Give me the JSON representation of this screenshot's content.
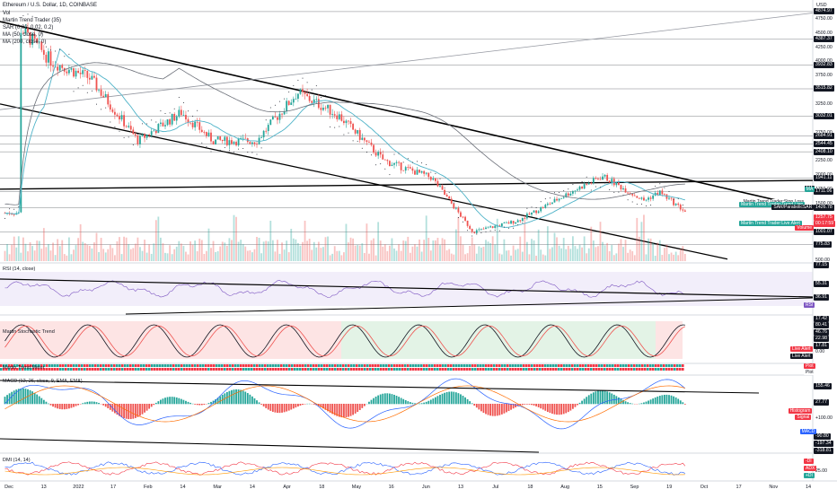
{
  "header": {
    "symbol_line": "Ethereum / U.S. Dollar, 1D, COINBASE",
    "indicators": [
      "Vol",
      "Martin Trend Trader (35)",
      "SAR (0.02, 0.02, 0.2)",
      "MA (50, close, 0)",
      "MA (200, close, 0)"
    ]
  },
  "axis": {
    "currency": "USD",
    "price_ticks": [
      "4750.00",
      "4500.00",
      "4250.00",
      "4000.00",
      "3750.00",
      "3500.00",
      "3250.00",
      "3000.00",
      "2750.00",
      "2500.00",
      "2250.00",
      "2000.00",
      "1750.00",
      "1500.00",
      "1250.00",
      "1000.00",
      "750.00",
      "500.00"
    ],
    "x_ticks": [
      "Dec",
      "13",
      "2022",
      "17",
      "Feb",
      "14",
      "Mar",
      "14",
      "Apr",
      "18",
      "May",
      "16",
      "Jun",
      "13",
      "Jul",
      "18",
      "Aug",
      "15",
      "Sep",
      "19",
      "Oct",
      "17",
      "Nov",
      "14"
    ]
  },
  "price_badges": [
    {
      "label": "4874.97",
      "color": "#131722"
    },
    {
      "label": "4387.37",
      "color": "#131722"
    },
    {
      "label": "3932.83",
      "color": "#131722"
    },
    {
      "label": "3515.82",
      "color": "#131722"
    },
    {
      "label": "3032.01",
      "color": "#131722"
    },
    {
      "label": "2684.91",
      "color": "#131722"
    },
    {
      "label": "2544.45",
      "color": "#131722"
    },
    {
      "label": "2408.10",
      "color": "#131722"
    },
    {
      "label": "1941.11",
      "color": "#131722"
    },
    {
      "label": "1711.06",
      "color": "#131722"
    },
    {
      "label": "1426.78",
      "color": "#131722"
    },
    {
      "label": "1257.75",
      "color": "#f23645"
    },
    {
      "label": "00:17:59",
      "color": "#f23645"
    },
    {
      "label": "1001.07",
      "color": "#131722"
    },
    {
      "label": "775.83",
      "color": "#131722"
    }
  ],
  "series_tags": [
    {
      "label": "MA",
      "color": "#131722"
    },
    {
      "label": "MA",
      "color": "#26a69a"
    },
    {
      "label": "Martin Trend Trader:Stop Loss",
      "color": "#ffffff",
      "text": "#131722"
    },
    {
      "label": "Martin Trend Trader:Trend Line",
      "color": "#26a69a"
    },
    {
      "label": "SAR/ParabolicSAR",
      "color": "#131722"
    },
    {
      "label": "Martin Trend Trader:Live Alert",
      "color": "#26a69a"
    },
    {
      "label": "Volume",
      "color": "#f23645"
    }
  ],
  "panes": {
    "rsi": {
      "name": "RSI (14, close)",
      "ticks": [
        "77.15",
        "55.31",
        "36.91"
      ],
      "tag": "RSI"
    },
    "stoch": {
      "name": "Martin Stochastic Trend",
      "ticks": [
        "17.42",
        "80.41",
        "46.76",
        "22.98",
        "17.81",
        "0.00"
      ],
      "tags": [
        "Live Alert",
        "Live Alert"
      ]
    },
    "trend": {
      "name": "Martin Trend Meter",
      "tags": [
        "Plot",
        "Plot"
      ]
    },
    "macd": {
      "name": "MACD (12, 26, close, 9, EMA, EMA)",
      "ticks": [
        "155.46",
        "27.77",
        "+100.00",
        "-90.80",
        "-197.34",
        "-318.81"
      ],
      "tags": [
        "Histogram",
        "Signal",
        "MACD"
      ]
    },
    "dmi": {
      "name": "DMI (14, 14)",
      "ticks": [
        "25.00"
      ],
      "tags": [
        "-DI",
        "ADX",
        "+DI"
      ]
    }
  },
  "chart_data": {
    "type": "candlestick",
    "title": "Ethereum / U.S. Dollar, 1D, COINBASE",
    "ylabel": "USD",
    "ylim": [
      500,
      5000
    ],
    "x_start": "2021-11-24",
    "x_end": "2022-09-20",
    "approx_closes_by_month": [
      {
        "date": "2021-12-01",
        "close": 4600
      },
      {
        "date": "2021-12-15",
        "close": 4000
      },
      {
        "date": "2022-01-01",
        "close": 3700
      },
      {
        "date": "2022-01-22",
        "close": 2600
      },
      {
        "date": "2022-02-10",
        "close": 3100
      },
      {
        "date": "2022-02-24",
        "close": 2600
      },
      {
        "date": "2022-03-15",
        "close": 2600
      },
      {
        "date": "2022-04-02",
        "close": 3450
      },
      {
        "date": "2022-04-20",
        "close": 3050
      },
      {
        "date": "2022-05-10",
        "close": 2250
      },
      {
        "date": "2022-05-31",
        "close": 1950
      },
      {
        "date": "2022-06-18",
        "close": 1000
      },
      {
        "date": "2022-07-08",
        "close": 1200
      },
      {
        "date": "2022-07-31",
        "close": 1700
      },
      {
        "date": "2022-08-14",
        "close": 1980
      },
      {
        "date": "2022-09-01",
        "close": 1550
      },
      {
        "date": "2022-09-08",
        "close": 1700
      },
      {
        "date": "2022-09-20",
        "close": 1330
      }
    ],
    "last_price": 1257.75,
    "key_levels": [
      4874.97,
      4387.37,
      3932.83,
      3515.82,
      3032.01,
      2684.91,
      2544.45,
      2408.1,
      1941.11,
      1711.06,
      1426.78,
      1001.07,
      775.83
    ],
    "rsi_levels": [
      77.15,
      55.31,
      36.91
    ],
    "macd_levels": [
      155.46,
      27.77,
      -90.8,
      -197.34,
      -318.81
    ]
  }
}
